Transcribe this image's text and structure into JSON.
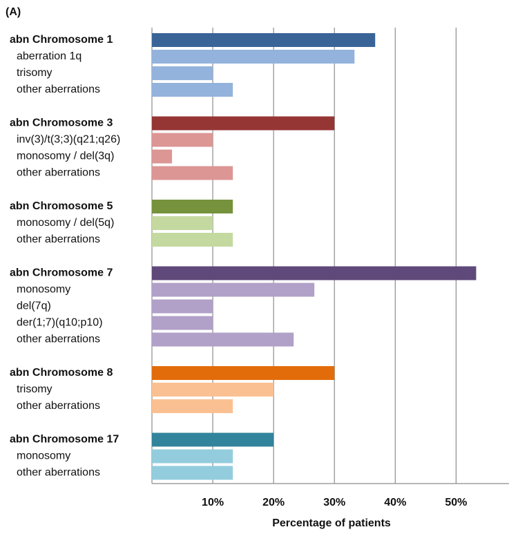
{
  "chart_data": {
    "type": "bar",
    "title": "(A)",
    "x_label": "Percentage of patients",
    "xlim": [
      0,
      58.7
    ],
    "xticks": [
      {
        "value": 10,
        "label": "10%"
      },
      {
        "value": 20,
        "label": "20%"
      },
      {
        "value": 30,
        "label": "30%"
      },
      {
        "value": 40,
        "label": "40%"
      },
      {
        "value": 50,
        "label": "50%"
      }
    ],
    "grid": true,
    "groups": [
      {
        "name": "abn Chromosome  1",
        "value": 36.7,
        "color": "#3a6497",
        "item_color": "#93b3dc",
        "items": [
          {
            "name": "aberration 1q",
            "value": 33.3
          },
          {
            "name": "trisomy",
            "value": 10
          },
          {
            "name": "other aberrations",
            "value": 13.3
          }
        ]
      },
      {
        "name": "abn Chromosome 3",
        "value": 30,
        "color": "#963634",
        "item_color": "#dc9694",
        "items": [
          {
            "name": "inv(3)/t(3;3)(q21;q26)",
            "value": 10
          },
          {
            "name": "monosomy / del(3q)",
            "value": 3.3
          },
          {
            "name": "other aberrations",
            "value": 13.3
          }
        ]
      },
      {
        "name": "abn Chromosome 5",
        "value": 13.3,
        "color": "#76923c",
        "item_color": "#c4d9a0",
        "items": [
          {
            "name": "monosomy / del(5q)",
            "value": 10
          },
          {
            "name": "other aberrations",
            "value": 13.3
          }
        ]
      },
      {
        "name": "abn Chromosome 7",
        "value": 53.3,
        "color": "#5f497a",
        "item_color": "#b1a0c7",
        "items": [
          {
            "name": "monosomy",
            "value": 26.7
          },
          {
            "name": "del(7q)",
            "value": 10
          },
          {
            "name": "der(1;7)(q10;p10)",
            "value": 10
          },
          {
            "name": "other aberrations",
            "value": 23.3
          }
        ]
      },
      {
        "name": "abn Chromosome 8",
        "value": 30,
        "color": "#e36c0a",
        "item_color": "#fbc091",
        "items": [
          {
            "name": "trisomy",
            "value": 20
          },
          {
            "name": "other aberrations",
            "value": 13.3
          }
        ]
      },
      {
        "name": "abn Chromosome 17",
        "value": 20,
        "color": "#31849b",
        "item_color": "#93cddd",
        "items": [
          {
            "name": "monosomy",
            "value": 13.3
          },
          {
            "name": "other aberrations",
            "value": 13.3
          }
        ]
      }
    ]
  }
}
